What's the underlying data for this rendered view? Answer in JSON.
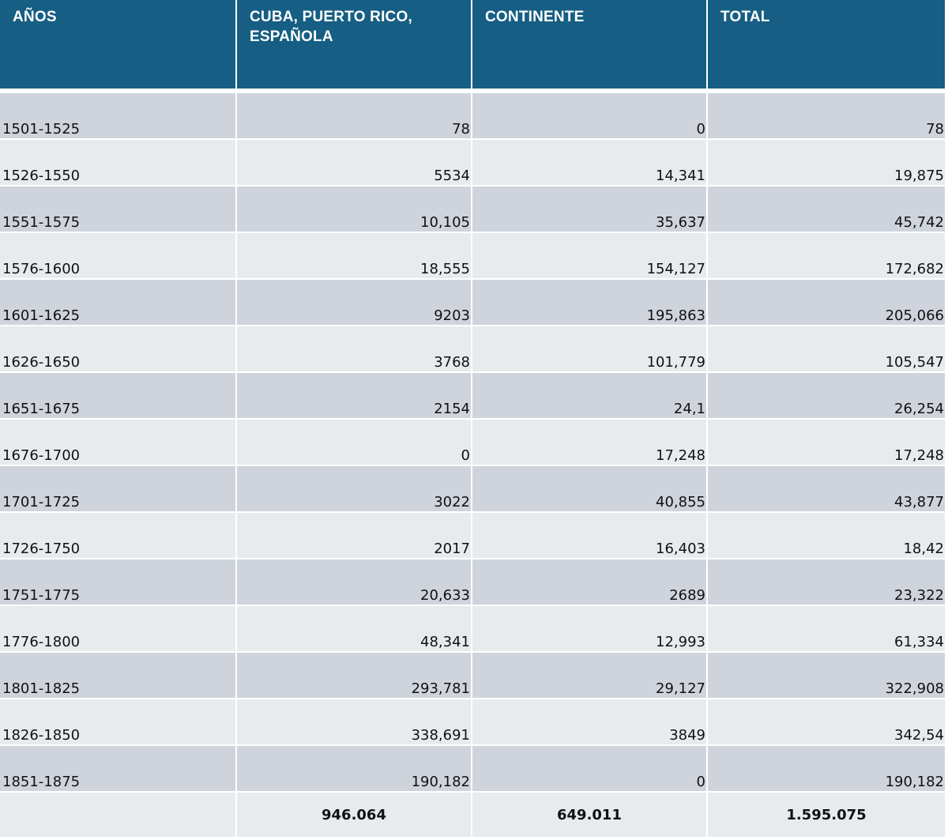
{
  "table": {
    "headers": [
      "AÑOS",
      "CUBA, PUERTO RICO, ESPAÑOLA",
      "CONTINENTE",
      "TOTAL"
    ],
    "rows": [
      {
        "years": "1501-1525",
        "cuba": "78",
        "continente": "0",
        "total": "78"
      },
      {
        "years": "1526-1550",
        "cuba": "5534",
        "continente": "14,341",
        "total": "19,875"
      },
      {
        "years": "1551-1575",
        "cuba": "10,105",
        "continente": "35,637",
        "total": "45,742"
      },
      {
        "years": "1576-1600",
        "cuba": "18,555",
        "continente": "154,127",
        "total": "172,682"
      },
      {
        "years": "1601-1625",
        "cuba": "9203",
        "continente": "195,863",
        "total": "205,066"
      },
      {
        "years": "1626-1650",
        "cuba": "3768",
        "continente": "101,779",
        "total": "105,547"
      },
      {
        "years": "1651-1675",
        "cuba": "2154",
        "continente": "24,1",
        "total": "26,254"
      },
      {
        "years": "1676-1700",
        "cuba": "0",
        "continente": "17,248",
        "total": "17,248"
      },
      {
        "years": "1701-1725",
        "cuba": "3022",
        "continente": "40,855",
        "total": "43,877"
      },
      {
        "years": "1726-1750",
        "cuba": "2017",
        "continente": "16,403",
        "total": "18,42"
      },
      {
        "years": "1751-1775",
        "cuba": "20,633",
        "continente": "2689",
        "total": "23,322"
      },
      {
        "years": "1776-1800",
        "cuba": "48,341",
        "continente": "12,993",
        "total": "61,334"
      },
      {
        "years": "1801-1825",
        "cuba": "293,781",
        "continente": "29,127",
        "total": "322,908"
      },
      {
        "years": "1826-1850",
        "cuba": "338,691",
        "continente": "3849",
        "total": "342,54"
      },
      {
        "years": "1851-1875",
        "cuba": "190,182",
        "continente": "0",
        "total": "190,182"
      }
    ],
    "totals": {
      "years": "",
      "cuba": "946.064",
      "continente": "649.011",
      "total": "1.595.075"
    }
  },
  "colors": {
    "header_bg": "#165e83",
    "row_dark": "#cfd4dc",
    "row_light": "#e8ebee"
  }
}
